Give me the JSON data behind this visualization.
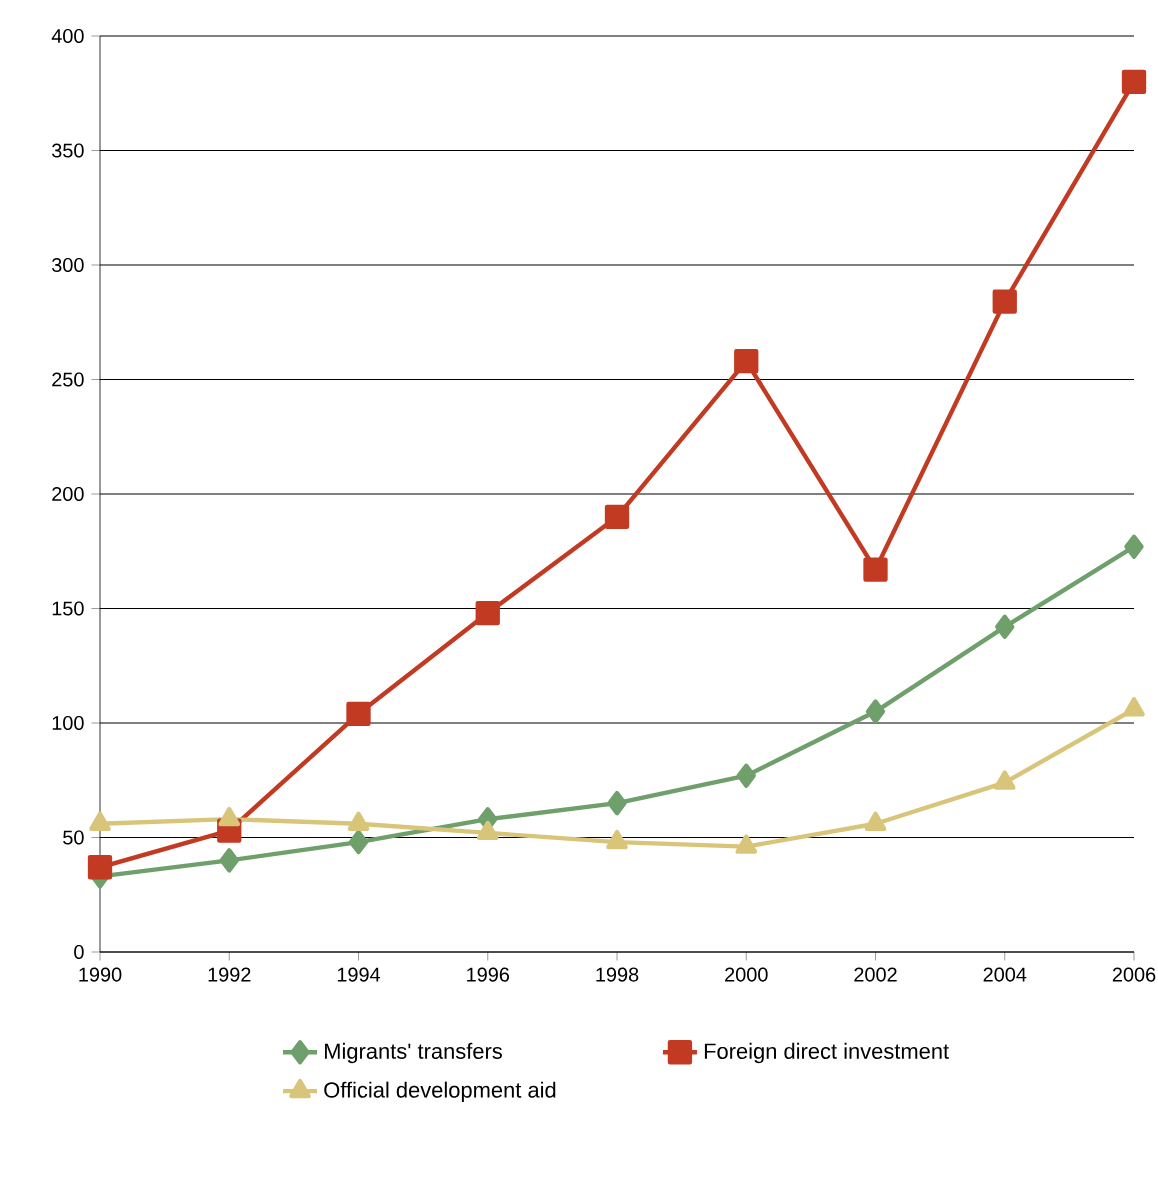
{
  "chart_data": {
    "type": "line",
    "x": [
      1990,
      1992,
      1994,
      1996,
      1998,
      2000,
      2002,
      2004,
      2006
    ],
    "series": [
      {
        "name": "Migrants' transfers",
        "color": "#6f9f6b",
        "marker": "diamond",
        "values": [
          33,
          40,
          48,
          58,
          65,
          77,
          105,
          142,
          177
        ]
      },
      {
        "name": "Foreign direct investment",
        "color": "#c23a22",
        "marker": "square",
        "values": [
          37,
          53,
          104,
          148,
          190,
          258,
          167,
          284,
          380
        ]
      },
      {
        "name": "Official development aid",
        "color": "#d8c57a",
        "marker": "triangle",
        "values": [
          56,
          58,
          56,
          52,
          48,
          46,
          56,
          74,
          106
        ]
      }
    ],
    "xlim": [
      1990,
      2006
    ],
    "xticks": [
      1990,
      1992,
      1994,
      1996,
      1998,
      2000,
      2002,
      2004,
      2006
    ],
    "ylim": [
      0,
      400
    ],
    "yticks": [
      0,
      50,
      100,
      150,
      200,
      250,
      300,
      350,
      400
    ],
    "grid": "y",
    "legend": "bottom",
    "line_style": "solid"
  }
}
